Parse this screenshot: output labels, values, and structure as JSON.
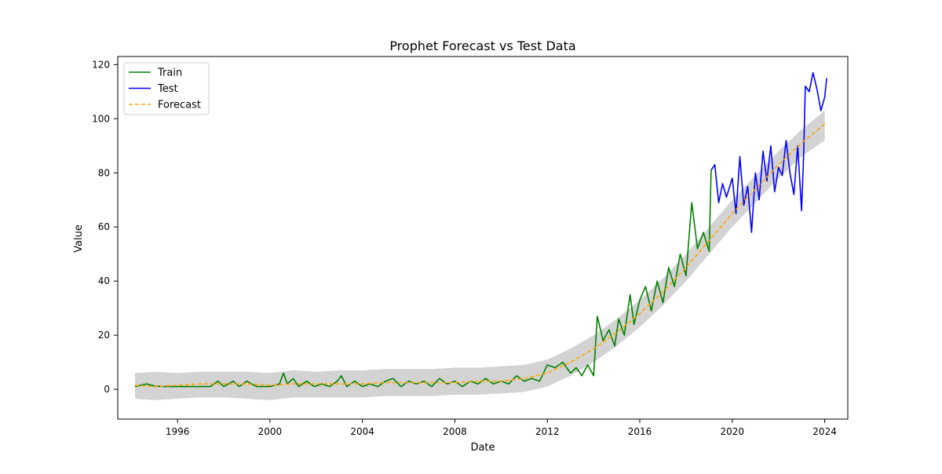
{
  "chart_data": {
    "type": "line",
    "title": "Prophet Forecast vs Test Data",
    "xlabel": "Date",
    "ylabel": "Value",
    "xlim": [
      "1993-06-01",
      "2024-12-31"
    ],
    "ylim": [
      -11,
      123
    ],
    "x_ticks": [
      1996,
      2000,
      2004,
      2008,
      2012,
      2016,
      2020,
      2024
    ],
    "y_ticks": [
      0,
      20,
      40,
      60,
      80,
      100,
      120
    ],
    "grid": false,
    "legend": {
      "position": "top-left",
      "entries": [
        "Train",
        "Test",
        "Forecast"
      ]
    },
    "colors": {
      "train": "#008000",
      "test": "#0000ff",
      "forecast": "#ffa500",
      "interval": "#d3d3d3"
    },
    "series": [
      {
        "name": "Train",
        "color": "#008000",
        "style": "solid",
        "points": [
          [
            "1994-03",
            1.0
          ],
          [
            "1994-06",
            1.5
          ],
          [
            "1994-09",
            2.0
          ],
          [
            "1995-01",
            1.2
          ],
          [
            "1995-06",
            1.0
          ],
          [
            "1996-01",
            1.0
          ],
          [
            "1996-06",
            1.0
          ],
          [
            "1997-01",
            1.0
          ],
          [
            "1997-06",
            1.0
          ],
          [
            "1997-10",
            3.0
          ],
          [
            "1998-01",
            1.0
          ],
          [
            "1998-06",
            3.0
          ],
          [
            "1998-09",
            1.0
          ],
          [
            "1999-01",
            3.0
          ],
          [
            "1999-06",
            1.0
          ],
          [
            "2000-01",
            1.0
          ],
          [
            "2000-06",
            2.0
          ],
          [
            "2000-08",
            6.0
          ],
          [
            "2000-10",
            2.0
          ],
          [
            "2001-01",
            4.0
          ],
          [
            "2001-04",
            1.0
          ],
          [
            "2001-08",
            3.0
          ],
          [
            "2001-12",
            1.0
          ],
          [
            "2002-04",
            2.0
          ],
          [
            "2002-08",
            1.0
          ],
          [
            "2002-12",
            3.0
          ],
          [
            "2003-02",
            5.0
          ],
          [
            "2003-05",
            1.0
          ],
          [
            "2003-09",
            3.0
          ],
          [
            "2004-01",
            1.0
          ],
          [
            "2004-05",
            2.0
          ],
          [
            "2004-09",
            1.0
          ],
          [
            "2005-01",
            3.0
          ],
          [
            "2005-05",
            4.0
          ],
          [
            "2005-09",
            1.0
          ],
          [
            "2006-01",
            3.0
          ],
          [
            "2006-05",
            2.0
          ],
          [
            "2006-09",
            3.0
          ],
          [
            "2007-01",
            1.0
          ],
          [
            "2007-05",
            4.0
          ],
          [
            "2007-09",
            2.0
          ],
          [
            "2008-01",
            3.0
          ],
          [
            "2008-05",
            1.0
          ],
          [
            "2008-09",
            3.0
          ],
          [
            "2009-01",
            2.0
          ],
          [
            "2009-05",
            4.0
          ],
          [
            "2009-09",
            2.0
          ],
          [
            "2010-01",
            3.0
          ],
          [
            "2010-05",
            2.0
          ],
          [
            "2010-09",
            5.0
          ],
          [
            "2011-01",
            3.0
          ],
          [
            "2011-05",
            4.0
          ],
          [
            "2011-09",
            3.0
          ],
          [
            "2012-01",
            9.0
          ],
          [
            "2012-05",
            8.0
          ],
          [
            "2012-09",
            10.0
          ],
          [
            "2013-01",
            6.0
          ],
          [
            "2013-04",
            8.0
          ],
          [
            "2013-07",
            5.0
          ],
          [
            "2013-10",
            9.0
          ],
          [
            "2014-01",
            5.0
          ],
          [
            "2014-03",
            27.0
          ],
          [
            "2014-06",
            18.0
          ],
          [
            "2014-09",
            22.0
          ],
          [
            "2014-12",
            16.0
          ],
          [
            "2015-02",
            26.0
          ],
          [
            "2015-05",
            20.0
          ],
          [
            "2015-08",
            35.0
          ],
          [
            "2015-10",
            24.0
          ],
          [
            "2016-01",
            33.0
          ],
          [
            "2016-04",
            38.0
          ],
          [
            "2016-07",
            29.0
          ],
          [
            "2016-10",
            40.0
          ],
          [
            "2017-01",
            32.0
          ],
          [
            "2017-04",
            45.0
          ],
          [
            "2017-07",
            38.0
          ],
          [
            "2017-10",
            50.0
          ],
          [
            "2018-01",
            42.0
          ],
          [
            "2018-04",
            69.0
          ],
          [
            "2018-07",
            52.0
          ],
          [
            "2018-10",
            58.0
          ],
          [
            "2019-01",
            51.0
          ],
          [
            "2019-02",
            81.0
          ]
        ]
      },
      {
        "name": "Test",
        "color": "#0000ff",
        "style": "solid",
        "points": [
          [
            "2019-02",
            81.0
          ],
          [
            "2019-04",
            83.0
          ],
          [
            "2019-06",
            69.0
          ],
          [
            "2019-08",
            76.0
          ],
          [
            "2019-10",
            71.0
          ],
          [
            "2020-01",
            78.0
          ],
          [
            "2020-03",
            65.0
          ],
          [
            "2020-05",
            86.0
          ],
          [
            "2020-07",
            68.0
          ],
          [
            "2020-09",
            75.0
          ],
          [
            "2020-11",
            58.0
          ],
          [
            "2021-01",
            80.0
          ],
          [
            "2021-03",
            70.0
          ],
          [
            "2021-05",
            88.0
          ],
          [
            "2021-07",
            77.0
          ],
          [
            "2021-09",
            90.0
          ],
          [
            "2021-11",
            73.0
          ],
          [
            "2022-01",
            82.0
          ],
          [
            "2022-03",
            79.0
          ],
          [
            "2022-05",
            92.0
          ],
          [
            "2022-07",
            80.0
          ],
          [
            "2022-09",
            72.0
          ],
          [
            "2022-11",
            90.0
          ],
          [
            "2023-01",
            66.0
          ],
          [
            "2023-02",
            85.0
          ],
          [
            "2023-03",
            112.0
          ],
          [
            "2023-05",
            110.0
          ],
          [
            "2023-07",
            117.0
          ],
          [
            "2023-09",
            111.0
          ],
          [
            "2023-11",
            103.0
          ],
          [
            "2024-01",
            108.0
          ],
          [
            "2024-02",
            115.0
          ]
        ]
      },
      {
        "name": "Forecast",
        "color": "#ffa500",
        "style": "dashed",
        "points": [
          [
            "1994-03",
            1.5
          ],
          [
            "1995-01",
            1.0
          ],
          [
            "1996-01",
            1.5
          ],
          [
            "1997-01",
            2.0
          ],
          [
            "1998-01",
            2.0
          ],
          [
            "1999-01",
            2.0
          ],
          [
            "2000-01",
            1.5
          ],
          [
            "2001-01",
            2.0
          ],
          [
            "2002-01",
            2.0
          ],
          [
            "2003-01",
            2.0
          ],
          [
            "2004-01",
            2.0
          ],
          [
            "2005-01",
            2.5
          ],
          [
            "2006-01",
            2.5
          ],
          [
            "2007-01",
            2.5
          ],
          [
            "2008-01",
            2.5
          ],
          [
            "2009-01",
            3.0
          ],
          [
            "2010-01",
            3.0
          ],
          [
            "2011-01",
            4.0
          ],
          [
            "2012-01",
            6.0
          ],
          [
            "2013-01",
            10.0
          ],
          [
            "2014-01",
            15.0
          ],
          [
            "2015-01",
            21.0
          ],
          [
            "2016-01",
            28.0
          ],
          [
            "2017-01",
            36.0
          ],
          [
            "2018-01",
            45.0
          ],
          [
            "2019-01",
            55.0
          ],
          [
            "2020-01",
            65.0
          ],
          [
            "2021-01",
            74.0
          ],
          [
            "2022-01",
            83.0
          ],
          [
            "2023-01",
            91.0
          ],
          [
            "2024-01",
            98.0
          ]
        ]
      }
    ],
    "interval": {
      "name": "Forecast uncertainty",
      "color": "#d3d3d3",
      "points": [
        [
          "1994-03",
          -3.5,
          6.0
        ],
        [
          "1995-01",
          -4.0,
          6.5
        ],
        [
          "1996-01",
          -3.5,
          6.0
        ],
        [
          "1997-01",
          -3.0,
          6.5
        ],
        [
          "1998-01",
          -3.0,
          6.5
        ],
        [
          "1999-01",
          -3.5,
          6.5
        ],
        [
          "2000-01",
          -4.0,
          6.0
        ],
        [
          "2001-01",
          -3.0,
          7.0
        ],
        [
          "2002-01",
          -3.0,
          6.5
        ],
        [
          "2003-01",
          -3.0,
          7.0
        ],
        [
          "2004-01",
          -3.0,
          7.0
        ],
        [
          "2005-01",
          -2.5,
          7.5
        ],
        [
          "2006-01",
          -2.5,
          7.5
        ],
        [
          "2007-01",
          -2.5,
          7.5
        ],
        [
          "2008-01",
          -2.0,
          8.0
        ],
        [
          "2009-01",
          -2.0,
          8.0
        ],
        [
          "2010-01",
          -1.5,
          8.5
        ],
        [
          "2011-01",
          -1.0,
          9.0
        ],
        [
          "2012-01",
          1.0,
          11.0
        ],
        [
          "2013-01",
          5.0,
          15.0
        ],
        [
          "2014-01",
          10.0,
          20.0
        ],
        [
          "2015-01",
          16.0,
          26.0
        ],
        [
          "2016-01",
          23.0,
          33.0
        ],
        [
          "2017-01",
          31.0,
          41.0
        ],
        [
          "2018-01",
          40.0,
          50.0
        ],
        [
          "2019-01",
          50.0,
          60.0
        ],
        [
          "2020-01",
          60.0,
          70.0
        ],
        [
          "2021-01",
          69.0,
          79.0
        ],
        [
          "2022-01",
          78.0,
          88.0
        ],
        [
          "2023-01",
          86.0,
          96.0
        ],
        [
          "2024-01",
          92.0,
          103.0
        ]
      ]
    }
  }
}
